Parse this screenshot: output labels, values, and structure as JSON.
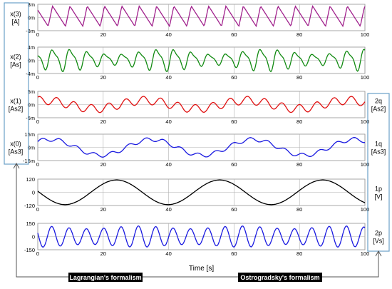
{
  "x_axis_label": "Time [s]",
  "chart_data": [
    {
      "type": "line",
      "label_lines": [
        "x(3)",
        "[A]"
      ],
      "xlim": [
        0,
        100
      ],
      "ylim": [
        -3,
        3
      ],
      "y_ticks": [
        {
          "v": 3,
          "t": "3m"
        },
        {
          "v": 0,
          "t": "0m"
        },
        {
          "v": -3,
          "t": "-3m"
        }
      ],
      "x_ticks": [
        "0",
        "20",
        "40",
        "60",
        "80",
        "100"
      ],
      "grid": true,
      "series": [
        {
          "color": "#a0208c",
          "wave": "saw",
          "offset": 0.3,
          "amp": 2.3,
          "period": 5.3,
          "phase": 0.4,
          "mod": 0
        }
      ]
    },
    {
      "type": "line",
      "label_lines": [
        "x(2)",
        "[As]"
      ],
      "xlim": [
        0,
        100
      ],
      "ylim": [
        -4,
        4
      ],
      "y_ticks": [
        {
          "v": 4,
          "t": "4m"
        },
        {
          "v": 0,
          "t": "0m"
        },
        {
          "v": -4,
          "t": "-4m"
        }
      ],
      "x_ticks": [
        "0",
        "20",
        "40",
        "60",
        "80",
        "100"
      ],
      "grid": true,
      "series": [
        {
          "color": "#118a11",
          "wave": "peaky",
          "offset": 0.3,
          "amp": 2.8,
          "period": 5.3,
          "phase": 2.2,
          "mod": 0.35
        }
      ]
    },
    {
      "type": "line",
      "label_lines": [
        "x(1)",
        "[As2]"
      ],
      "right_label_lines": [
        "2q",
        "[As2]"
      ],
      "xlim": [
        0,
        100
      ],
      "ylim": [
        -5,
        5
      ],
      "y_ticks": [
        {
          "v": 5,
          "t": "5m"
        },
        {
          "v": 0,
          "t": "0m"
        },
        {
          "v": -5,
          "t": "-5m"
        }
      ],
      "x_ticks": [
        "0",
        "20",
        "40",
        "60",
        "80",
        "100"
      ],
      "grid": true,
      "series": [
        {
          "color": "#e01010",
          "wave": "mixed",
          "offset": 0,
          "amp": 2.6,
          "period": 5.3,
          "phase": 1.0,
          "mod": 0.6
        }
      ]
    },
    {
      "type": "line",
      "label_lines": [
        "x(0)",
        "[As3]"
      ],
      "right_label_lines": [
        "1q",
        "[As3]"
      ],
      "xlim": [
        0,
        100
      ],
      "ylim": [
        -15,
        15
      ],
      "y_ticks": [
        {
          "v": 15,
          "t": "15m"
        },
        {
          "v": 0,
          "t": "0m"
        },
        {
          "v": -15,
          "t": "-15m"
        }
      ],
      "x_ticks": [
        "0",
        "20",
        "40",
        "60",
        "80",
        "100"
      ],
      "grid": true,
      "series": [
        {
          "color": "#1a1ae0",
          "wave": "slowripple",
          "offset": 0,
          "amp": 9,
          "period": 31,
          "phase": 0.8,
          "mod": 2.2
        }
      ]
    },
    {
      "type": "line",
      "right_label_lines": [
        "1p",
        "[V]"
      ],
      "xlim": [
        0,
        100
      ],
      "ylim": [
        -120,
        120
      ],
      "y_ticks": [
        {
          "v": 120,
          "t": "120"
        },
        {
          "v": 0,
          "t": "0"
        },
        {
          "v": -120,
          "t": "-120"
        }
      ],
      "x_ticks": [
        "0",
        "20",
        "40",
        "60",
        "80",
        "100"
      ],
      "grid": true,
      "series": [
        {
          "color": "#000000",
          "wave": "sine",
          "offset": 0,
          "amp": 112,
          "period": 31.5,
          "phase": 3.05,
          "mod": 0
        }
      ]
    },
    {
      "type": "line",
      "right_label_lines": [
        "2p",
        "[Vs]"
      ],
      "xlim": [
        0,
        100
      ],
      "ylim": [
        -150,
        150
      ],
      "y_ticks": [
        {
          "v": 150,
          "t": "150"
        },
        {
          "v": 0,
          "t": "0"
        },
        {
          "v": -150,
          "t": "-150"
        }
      ],
      "x_ticks": [
        "0",
        "20",
        "40",
        "60",
        "80",
        "100"
      ],
      "grid": true,
      "series": [
        {
          "color": "#1a1ae0",
          "wave": "sinebeat",
          "offset": 0,
          "amp": 105,
          "period": 5.3,
          "phase": 2.8,
          "mod": 0.15
        }
      ]
    }
  ],
  "banners": [
    {
      "text": "Lagrangian's formalism"
    },
    {
      "text": "Ostrogradsky's formalism"
    }
  ],
  "colors": {
    "bracket": "#6aa0c8",
    "grid": "#b0b0b0",
    "banner": "#000000"
  }
}
